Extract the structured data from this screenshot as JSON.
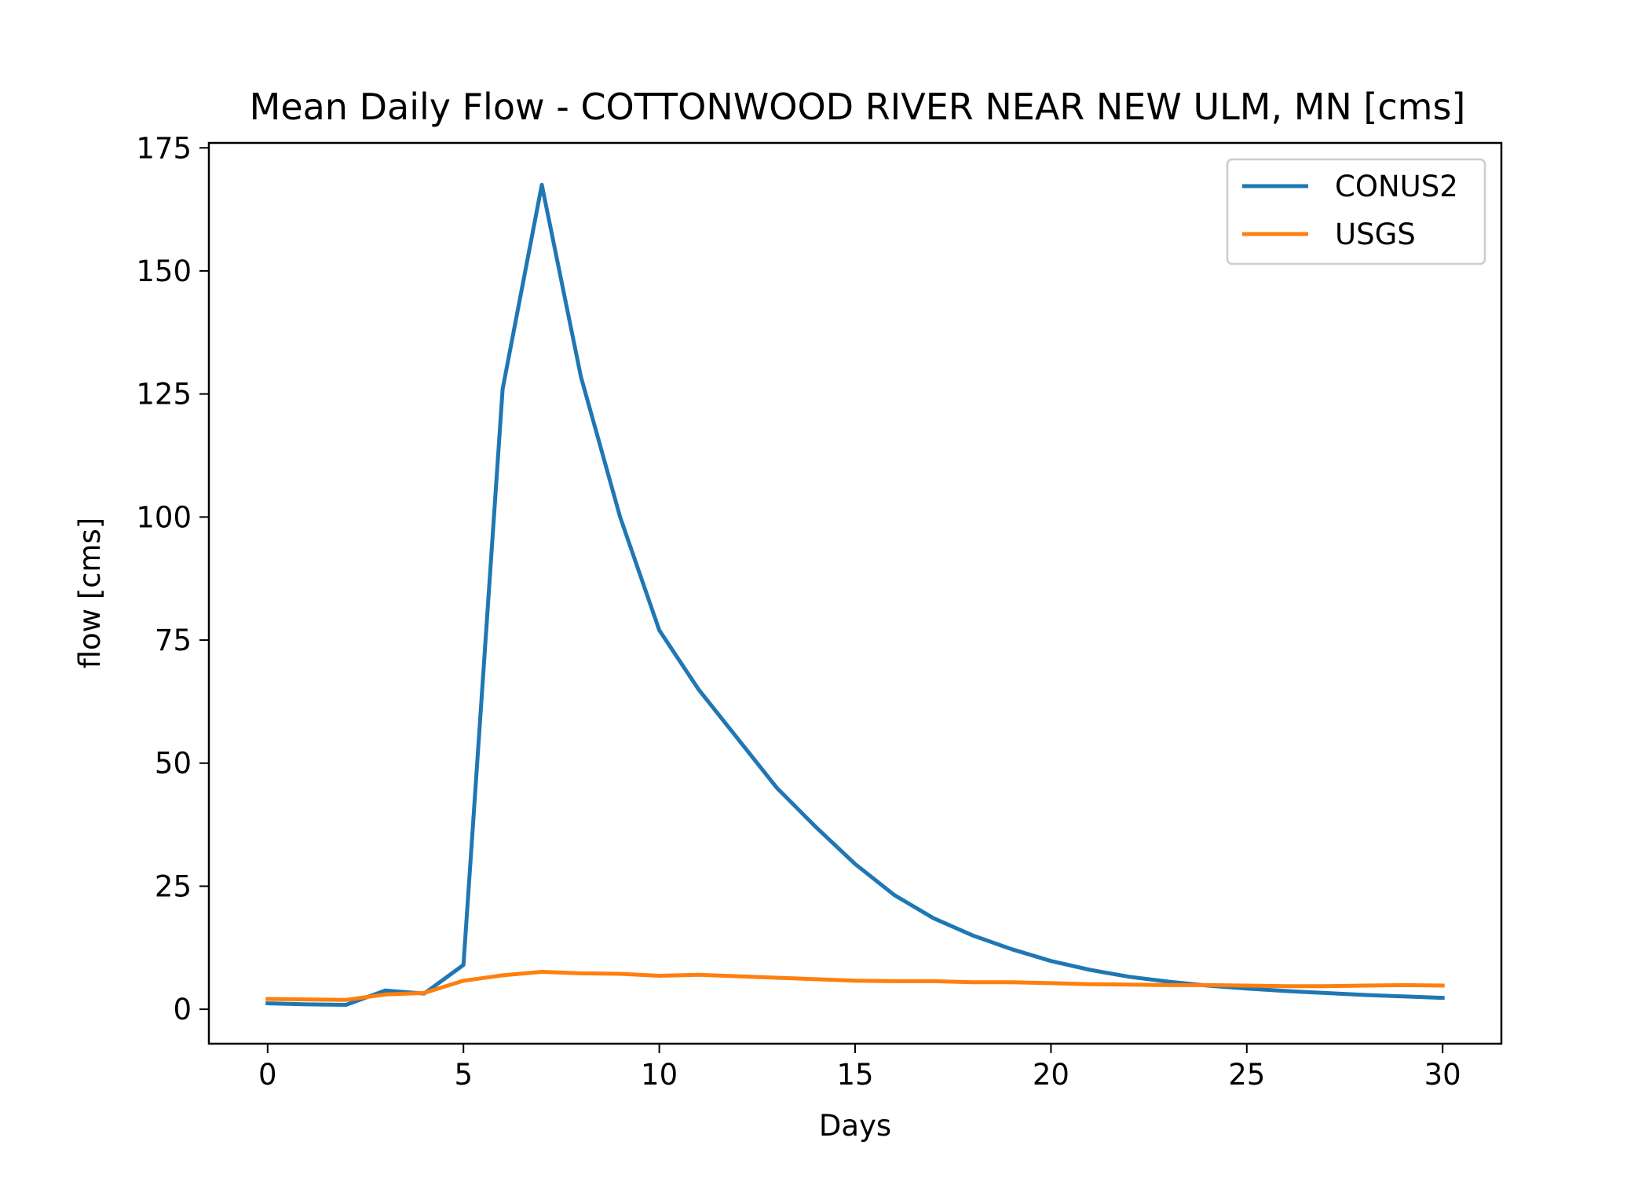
{
  "chart_data": {
    "type": "line",
    "title": "Mean Daily Flow - COTTONWOOD RIVER NEAR NEW ULM, MN [cms]",
    "xlabel": "Days",
    "ylabel": "flow [cms]",
    "xlim": [
      -1.5,
      31.5
    ],
    "ylim": [
      -7,
      176
    ],
    "xticks": [
      0,
      5,
      10,
      15,
      20,
      25,
      30
    ],
    "yticks": [
      0,
      25,
      50,
      75,
      100,
      125,
      150,
      175
    ],
    "grid": false,
    "legend_position": "top-right",
    "x": [
      0,
      1,
      2,
      3,
      4,
      5,
      6,
      7,
      8,
      9,
      10,
      11,
      12,
      13,
      14,
      15,
      16,
      17,
      18,
      19,
      20,
      21,
      22,
      23,
      24,
      25,
      26,
      27,
      28,
      29,
      30
    ],
    "series": [
      {
        "name": "CONUS2",
        "color": "#1f77b4",
        "values": [
          1.2,
          1.0,
          0.9,
          3.8,
          3.2,
          9.0,
          126.0,
          167.5,
          128.5,
          100.0,
          77.0,
          65.0,
          55.0,
          45.0,
          37.0,
          29.5,
          23.2,
          18.5,
          15.0,
          12.2,
          9.8,
          8.0,
          6.6,
          5.6,
          4.8,
          4.2,
          3.7,
          3.3,
          2.9,
          2.6,
          2.3
        ]
      },
      {
        "name": "USGS",
        "color": "#ff7f0e",
        "values": [
          2.1,
          2.0,
          1.9,
          3.0,
          3.3,
          5.8,
          6.9,
          7.6,
          7.3,
          7.2,
          6.8,
          7.0,
          6.7,
          6.4,
          6.1,
          5.8,
          5.7,
          5.7,
          5.5,
          5.5,
          5.3,
          5.1,
          5.0,
          4.9,
          4.9,
          4.8,
          4.7,
          4.7,
          4.8,
          4.9,
          4.8
        ]
      }
    ]
  }
}
